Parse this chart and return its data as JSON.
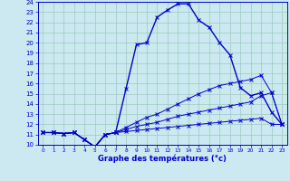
{
  "xlabel": "Graphe des températures (°c)",
  "bg_color": "#cce8f0",
  "grid_color": "#99ccbb",
  "line_color": "#0000cc",
  "xlim": [
    -0.5,
    23.5
  ],
  "ylim": [
    10,
    24
  ],
  "xticks": [
    0,
    1,
    2,
    3,
    4,
    5,
    6,
    7,
    8,
    9,
    10,
    11,
    12,
    13,
    14,
    15,
    16,
    17,
    18,
    19,
    20,
    21,
    22,
    23
  ],
  "yticks": [
    10,
    11,
    12,
    13,
    14,
    15,
    16,
    17,
    18,
    19,
    20,
    21,
    22,
    23,
    24
  ],
  "hours": [
    0,
    1,
    2,
    3,
    4,
    5,
    6,
    7,
    8,
    9,
    10,
    11,
    12,
    13,
    14,
    15,
    16,
    17,
    18,
    19,
    20,
    21,
    22,
    23
  ],
  "temp_main": [
    11.2,
    11.2,
    11.1,
    11.2,
    10.5,
    9.8,
    11.0,
    11.2,
    15.5,
    19.8,
    20.0,
    22.5,
    23.2,
    23.8,
    23.8,
    22.2,
    21.5,
    20.0,
    18.8,
    15.6,
    14.8,
    15.1,
    13.2,
    12.0
  ],
  "temp_line1": [
    11.2,
    11.2,
    11.1,
    11.2,
    10.5,
    9.8,
    11.0,
    11.2,
    11.3,
    11.4,
    11.5,
    11.6,
    11.7,
    11.8,
    11.9,
    12.0,
    12.1,
    12.2,
    12.3,
    12.4,
    12.5,
    12.6,
    12.0,
    12.0
  ],
  "temp_line2": [
    11.2,
    11.2,
    11.1,
    11.2,
    10.5,
    9.8,
    11.0,
    11.2,
    11.5,
    11.8,
    12.0,
    12.2,
    12.5,
    12.8,
    13.0,
    13.2,
    13.4,
    13.6,
    13.8,
    14.0,
    14.2,
    14.8,
    15.1,
    12.0
  ],
  "temp_line3": [
    11.2,
    11.2,
    11.1,
    11.2,
    10.5,
    9.8,
    11.0,
    11.2,
    11.7,
    12.2,
    12.7,
    13.0,
    13.5,
    14.0,
    14.5,
    15.0,
    15.4,
    15.8,
    16.0,
    16.2,
    16.4,
    16.8,
    15.1,
    12.0
  ]
}
